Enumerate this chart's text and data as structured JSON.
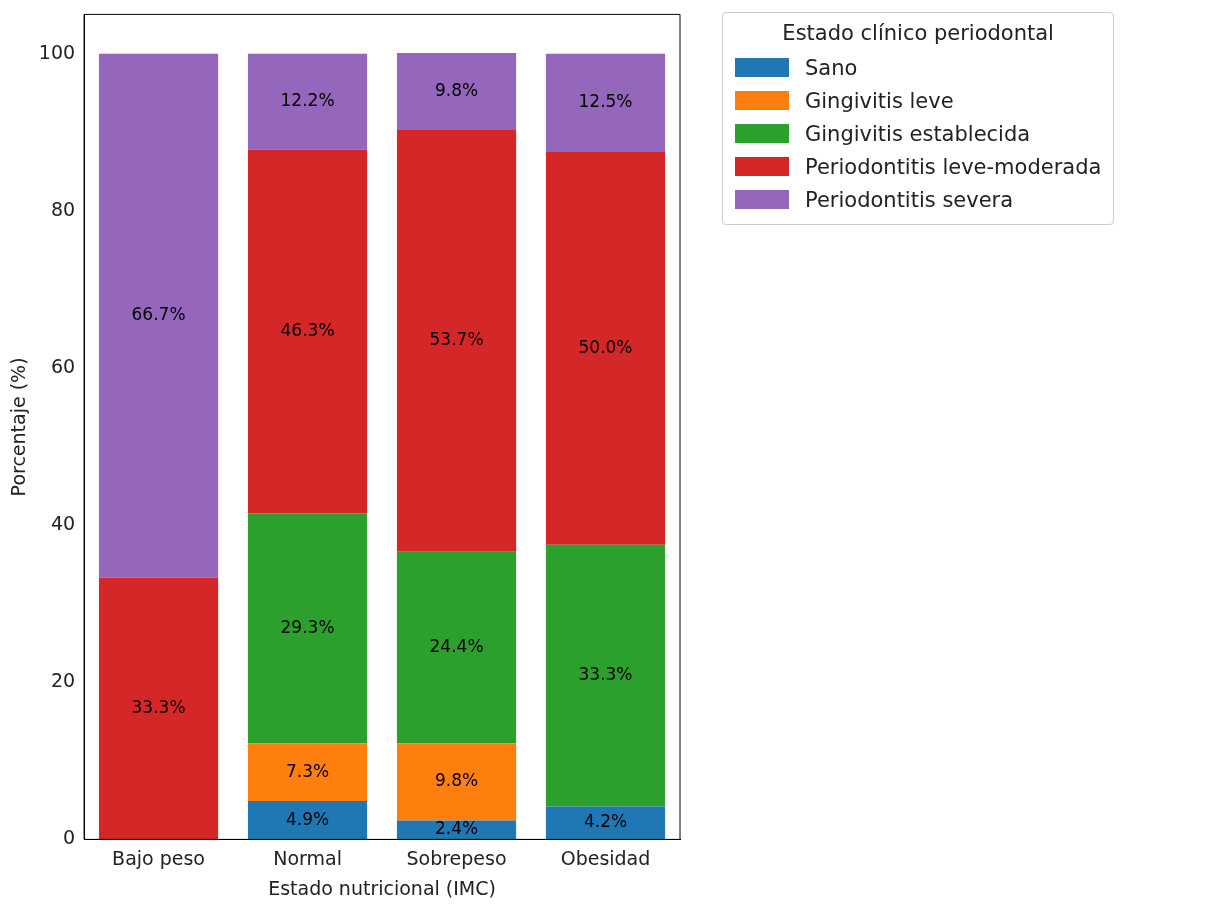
{
  "chart_data": {
    "type": "bar",
    "stacked": true,
    "xlabel": "Estado nutricional (IMC)",
    "ylabel": "Porcentaje (%)",
    "legend_title": "Estado clínico periodontal",
    "legend": "right",
    "categories": [
      "Bajo peso",
      "Normal",
      "Sobrepeso",
      "Obesidad"
    ],
    "ylim": [
      0,
      105
    ],
    "yticks": [
      0,
      20,
      40,
      60,
      80,
      100
    ],
    "series": [
      {
        "name": "Sano",
        "color": "#1f77b4",
        "values": [
          0,
          4.9,
          2.4,
          4.2
        ],
        "value_labels": [
          null,
          "4.9%",
          "2.4%",
          "4.2%"
        ]
      },
      {
        "name": "Gingivitis leve",
        "color": "#ff7f0e",
        "values": [
          0,
          7.3,
          9.8,
          0
        ],
        "value_labels": [
          null,
          "7.3%",
          "9.8%",
          null
        ]
      },
      {
        "name": "Gingivitis establecida",
        "color": "#2ca02c",
        "values": [
          0,
          29.3,
          24.4,
          33.3
        ],
        "value_labels": [
          null,
          "29.3%",
          "24.4%",
          "33.3%"
        ]
      },
      {
        "name": "Periodontitis leve-moderada",
        "color": "#d62728",
        "values": [
          33.3,
          46.3,
          53.7,
          50.0
        ],
        "value_labels": [
          "33.3%",
          "46.3%",
          "53.7%",
          "50.0%"
        ]
      },
      {
        "name": "Periodontitis severa",
        "color": "#9467bd",
        "values": [
          66.7,
          12.2,
          9.8,
          12.5
        ],
        "value_labels": [
          "66.7%",
          "12.2%",
          "9.8%",
          "12.5%"
        ]
      }
    ]
  }
}
